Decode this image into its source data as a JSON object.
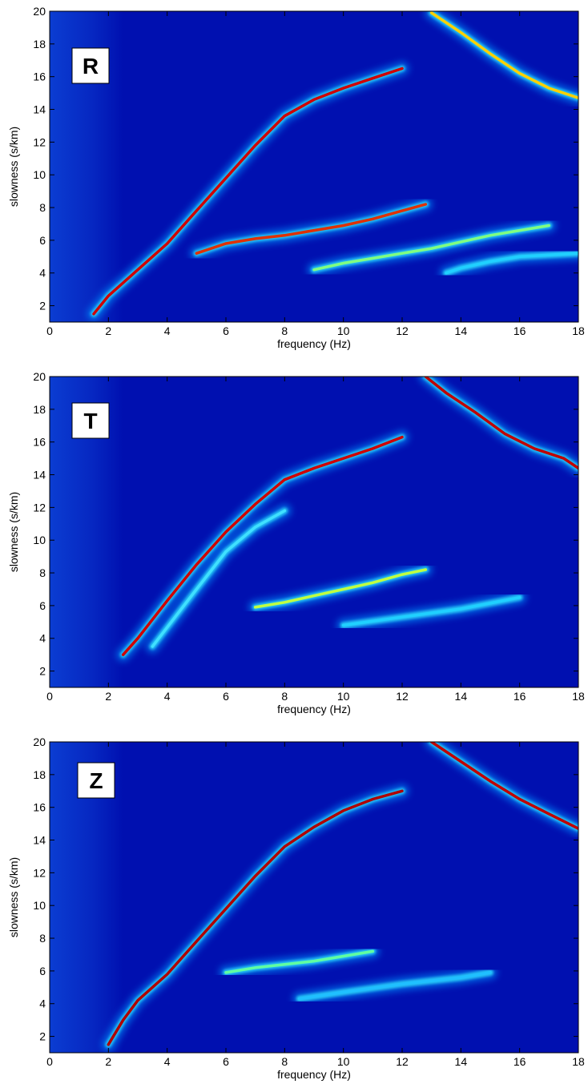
{
  "chart_data": [
    {
      "type": "spectrum",
      "label": "R",
      "xlabel": "frequency (Hz)",
      "ylabel": "slowness (s/km)",
      "xlim": [
        0,
        18
      ],
      "ylim": [
        1,
        20
      ],
      "xticks": [
        0,
        2,
        4,
        6,
        8,
        10,
        12,
        14,
        16,
        18
      ],
      "yticks": [
        2,
        4,
        6,
        8,
        10,
        12,
        14,
        16,
        18,
        20
      ],
      "background": "#0010b0",
      "series": [
        {
          "color": "#d00000",
          "x": [
            1.5,
            2,
            3,
            4,
            5,
            6,
            7,
            8,
            9,
            10,
            11,
            12
          ],
          "values": [
            1.5,
            2.6,
            4.2,
            5.8,
            7.8,
            9.8,
            11.8,
            13.6,
            14.6,
            15.3,
            15.9,
            16.5
          ]
        },
        {
          "color": "#e03000",
          "x": [
            5,
            6,
            7,
            8,
            9,
            10,
            11,
            12,
            12.8
          ],
          "values": [
            5.2,
            5.8,
            6.1,
            6.3,
            6.6,
            6.9,
            7.3,
            7.8,
            8.2
          ]
        },
        {
          "color": "#80ff80",
          "x": [
            9,
            10,
            11,
            12,
            13,
            14,
            15,
            16,
            17
          ],
          "values": [
            4.2,
            4.6,
            4.9,
            5.2,
            5.5,
            5.9,
            6.3,
            6.6,
            6.9
          ]
        },
        {
          "color": "#20d0ff",
          "x": [
            13.5,
            14,
            15,
            16,
            18
          ],
          "values": [
            4,
            4.3,
            4.7,
            5,
            5.2
          ]
        },
        {
          "color": "#ffd000",
          "x": [
            13,
            14,
            15,
            16,
            17,
            18
          ],
          "values": [
            19.9,
            18.7,
            17.4,
            16.2,
            15.3,
            14.7
          ]
        }
      ]
    },
    {
      "type": "spectrum",
      "label": "T",
      "xlabel": "frequency (Hz)",
      "ylabel": "slowness (s/km)",
      "xlim": [
        0,
        18
      ],
      "ylim": [
        1,
        20
      ],
      "xticks": [
        0,
        2,
        4,
        6,
        8,
        10,
        12,
        14,
        16,
        18
      ],
      "yticks": [
        2,
        4,
        6,
        8,
        10,
        12,
        14,
        16,
        18,
        20
      ],
      "background": "#0010b0",
      "series": [
        {
          "color": "#d00000",
          "x": [
            2.5,
            3,
            4,
            5,
            6,
            7,
            8,
            9,
            10,
            11,
            12
          ],
          "values": [
            3,
            4,
            6.3,
            8.5,
            10.5,
            12.2,
            13.7,
            14.4,
            15,
            15.6,
            16.3
          ]
        },
        {
          "color": "#40e0ff",
          "x": [
            3.5,
            5,
            6,
            7,
            8
          ],
          "values": [
            3.5,
            7,
            9.3,
            10.8,
            11.8
          ]
        },
        {
          "color": "#c0ff40",
          "x": [
            7,
            8,
            9,
            10,
            11,
            12,
            12.8
          ],
          "values": [
            5.9,
            6.2,
            6.6,
            7,
            7.4,
            7.9,
            8.2
          ]
        },
        {
          "color": "#20d0ff",
          "x": [
            10,
            12,
            14,
            16
          ],
          "values": [
            4.8,
            5.3,
            5.8,
            6.5
          ]
        },
        {
          "color": "#c00000",
          "x": [
            12.8,
            13.5,
            14.5,
            15.5,
            16.5,
            17.5,
            18
          ],
          "values": [
            20,
            19,
            17.8,
            16.5,
            15.6,
            15,
            14.4
          ]
        }
      ]
    },
    {
      "type": "spectrum",
      "label": "Z",
      "xlabel": "frequency (Hz)",
      "ylabel": "slowness (s/km)",
      "xlim": [
        0,
        18
      ],
      "ylim": [
        1,
        20
      ],
      "xticks": [
        0,
        2,
        4,
        6,
        8,
        10,
        12,
        14,
        16,
        18
      ],
      "yticks": [
        2,
        4,
        6,
        8,
        10,
        12,
        14,
        16,
        18,
        20
      ],
      "background": "#0010b0",
      "series": [
        {
          "color": "#b00000",
          "x": [
            2,
            2.5,
            3,
            4,
            5,
            6,
            7,
            8,
            9,
            10,
            11,
            12
          ],
          "values": [
            1.5,
            3,
            4.2,
            5.8,
            7.8,
            9.8,
            11.8,
            13.6,
            14.8,
            15.8,
            16.5,
            17
          ]
        },
        {
          "color": "#60ffa0",
          "x": [
            6,
            7,
            8,
            9,
            10,
            11
          ],
          "values": [
            5.9,
            6.2,
            6.4,
            6.6,
            6.9,
            7.2
          ]
        },
        {
          "color": "#20c0ff",
          "x": [
            8.5,
            10,
            12,
            14,
            15
          ],
          "values": [
            4.3,
            4.7,
            5.2,
            5.6,
            5.9
          ]
        },
        {
          "color": "#c00000",
          "x": [
            13,
            14,
            15,
            16,
            17,
            18
          ],
          "values": [
            20,
            18.8,
            17.6,
            16.5,
            15.6,
            14.7
          ]
        }
      ]
    }
  ]
}
